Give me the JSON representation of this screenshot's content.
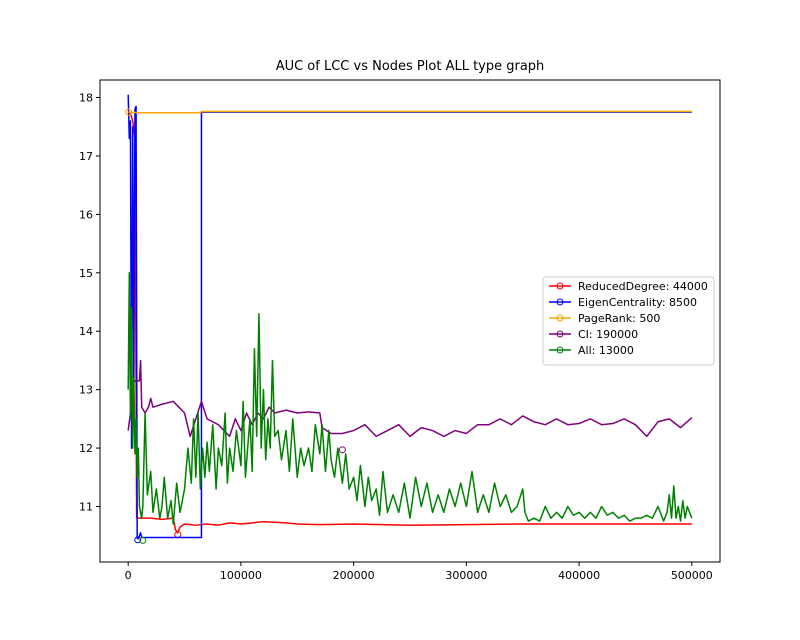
{
  "chart_data": {
    "type": "line",
    "title": "AUC of LCC vs Nodes Plot ALL type graph",
    "xlabel": "",
    "ylabel": "",
    "xlim": [
      -25000,
      525000
    ],
    "ylim": [
      10.05,
      18.3
    ],
    "xticks": [
      0,
      100000,
      200000,
      300000,
      400000,
      500000
    ],
    "xtick_labels": [
      "0",
      "100000",
      "200000",
      "300000",
      "400000",
      "500000"
    ],
    "yticks": [
      11,
      12,
      13,
      14,
      15,
      16,
      17,
      18
    ],
    "ytick_labels": [
      "11",
      "12",
      "13",
      "14",
      "15",
      "16",
      "17",
      "18"
    ],
    "grid": false,
    "legend_position": "center-right",
    "series": [
      {
        "name": "ReducedDegree: 44000",
        "color": "#ff0000",
        "marker": {
          "x": 44000,
          "y": 10.52
        },
        "points": [
          [
            0,
            17.75
          ],
          [
            2500,
            17.7
          ],
          [
            4000,
            17.6
          ],
          [
            6000,
            17.3
          ],
          [
            7500,
            10.8
          ],
          [
            20000,
            10.8
          ],
          [
            30000,
            10.78
          ],
          [
            40000,
            10.8
          ],
          [
            42000,
            10.6
          ],
          [
            44000,
            10.55
          ],
          [
            46000,
            10.65
          ],
          [
            50000,
            10.7
          ],
          [
            60000,
            10.68
          ],
          [
            70000,
            10.7
          ],
          [
            80000,
            10.68
          ],
          [
            90000,
            10.72
          ],
          [
            100000,
            10.7
          ],
          [
            110000,
            10.72
          ],
          [
            120000,
            10.74
          ],
          [
            130000,
            10.73
          ],
          [
            140000,
            10.72
          ],
          [
            150000,
            10.7
          ],
          [
            170000,
            10.69
          ],
          [
            200000,
            10.7
          ],
          [
            250000,
            10.68
          ],
          [
            300000,
            10.69
          ],
          [
            350000,
            10.7
          ],
          [
            400000,
            10.7
          ],
          [
            450000,
            10.7
          ],
          [
            500000,
            10.7
          ]
        ]
      },
      {
        "name": "EigenCentrality: 8500",
        "color": "#0000ff",
        "marker": {
          "x": 8500,
          "y": 10.43
        },
        "points": [
          [
            0,
            18.05
          ],
          [
            1000,
            17.3
          ],
          [
            2000,
            17.6
          ],
          [
            3000,
            12.0
          ],
          [
            4000,
            17.5
          ],
          [
            5000,
            13.0
          ],
          [
            6000,
            17.8
          ],
          [
            7000,
            17.85
          ],
          [
            8000,
            10.45
          ],
          [
            9000,
            10.45
          ],
          [
            11000,
            10.55
          ],
          [
            12000,
            10.47
          ],
          [
            65000,
            10.47
          ],
          [
            65000,
            17.75
          ],
          [
            500000,
            17.75
          ]
        ]
      },
      {
        "name": "PageRank: 500",
        "color": "#ffa500",
        "marker": {
          "x": 500,
          "y": 17.75
        },
        "points": [
          [
            0,
            17.75
          ],
          [
            500,
            17.75
          ],
          [
            10000,
            17.74
          ],
          [
            30000,
            17.74
          ],
          [
            50000,
            17.74
          ],
          [
            64000,
            17.74
          ],
          [
            65000,
            17.76
          ],
          [
            100000,
            17.76
          ],
          [
            200000,
            17.76
          ],
          [
            300000,
            17.76
          ],
          [
            400000,
            17.76
          ],
          [
            500000,
            17.76
          ]
        ]
      },
      {
        "name": "CI: 190000",
        "color": "#800080",
        "marker": {
          "x": 190000,
          "y": 11.97
        },
        "points": [
          [
            0,
            12.3
          ],
          [
            2000,
            12.6
          ],
          [
            4000,
            13.1
          ],
          [
            6000,
            13.15
          ],
          [
            10000,
            13.15
          ],
          [
            11000,
            13.5
          ],
          [
            12000,
            12.7
          ],
          [
            15000,
            12.6
          ],
          [
            18000,
            12.7
          ],
          [
            20000,
            12.85
          ],
          [
            22000,
            12.7
          ],
          [
            30000,
            12.75
          ],
          [
            40000,
            12.8
          ],
          [
            45000,
            12.7
          ],
          [
            50000,
            12.6
          ],
          [
            55000,
            12.2
          ],
          [
            60000,
            12.5
          ],
          [
            65000,
            12.8
          ],
          [
            70000,
            12.5
          ],
          [
            80000,
            12.4
          ],
          [
            90000,
            12.2
          ],
          [
            95000,
            12.5
          ],
          [
            100000,
            12.3
          ],
          [
            105000,
            12.6
          ],
          [
            110000,
            12.4
          ],
          [
            115000,
            12.6
          ],
          [
            120000,
            12.5
          ],
          [
            125000,
            12.7
          ],
          [
            130000,
            12.6
          ],
          [
            140000,
            12.65
          ],
          [
            150000,
            12.6
          ],
          [
            160000,
            12.62
          ],
          [
            170000,
            12.6
          ],
          [
            172000,
            12.35
          ],
          [
            180000,
            12.25
          ],
          [
            190000,
            12.25
          ],
          [
            200000,
            12.3
          ],
          [
            210000,
            12.4
          ],
          [
            220000,
            12.2
          ],
          [
            230000,
            12.3
          ],
          [
            240000,
            12.4
          ],
          [
            250000,
            12.2
          ],
          [
            260000,
            12.35
          ],
          [
            270000,
            12.3
          ],
          [
            280000,
            12.2
          ],
          [
            290000,
            12.3
          ],
          [
            300000,
            12.25
          ],
          [
            310000,
            12.4
          ],
          [
            320000,
            12.4
          ],
          [
            330000,
            12.5
          ],
          [
            340000,
            12.4
          ],
          [
            350000,
            12.55
          ],
          [
            360000,
            12.45
          ],
          [
            370000,
            12.4
          ],
          [
            380000,
            12.5
          ],
          [
            390000,
            12.4
          ],
          [
            400000,
            12.42
          ],
          [
            410000,
            12.5
          ],
          [
            420000,
            12.4
          ],
          [
            430000,
            12.42
          ],
          [
            440000,
            12.5
          ],
          [
            450000,
            12.4
          ],
          [
            460000,
            12.2
          ],
          [
            470000,
            12.45
          ],
          [
            480000,
            12.5
          ],
          [
            490000,
            12.35
          ],
          [
            500000,
            12.52
          ]
        ]
      },
      {
        "name": "All: 13000",
        "color": "#008000",
        "marker": {
          "x": 13000,
          "y": 10.42
        },
        "points": [
          [
            0,
            13.0
          ],
          [
            1000,
            15.0
          ],
          [
            2000,
            12.5
          ],
          [
            3000,
            14.4
          ],
          [
            4000,
            12.0
          ],
          [
            5000,
            13.2
          ],
          [
            6000,
            11.9
          ],
          [
            7000,
            12.5
          ],
          [
            8000,
            11.5
          ],
          [
            9000,
            12.0
          ],
          [
            10000,
            11.0
          ],
          [
            12000,
            10.8
          ],
          [
            13000,
            11.0
          ],
          [
            15000,
            12.6
          ],
          [
            17000,
            11.2
          ],
          [
            20000,
            11.6
          ],
          [
            22000,
            10.9
          ],
          [
            25000,
            11.3
          ],
          [
            28000,
            10.8
          ],
          [
            30000,
            11.0
          ],
          [
            32000,
            11.5
          ],
          [
            35000,
            10.8
          ],
          [
            38000,
            11.1
          ],
          [
            40000,
            10.7
          ],
          [
            43000,
            11.4
          ],
          [
            46000,
            10.9
          ],
          [
            50000,
            11.3
          ],
          [
            53000,
            12.0
          ],
          [
            56000,
            11.4
          ],
          [
            58000,
            12.5
          ],
          [
            60000,
            11.5
          ],
          [
            62000,
            12.6
          ],
          [
            64000,
            11.3
          ],
          [
            66000,
            12.0
          ],
          [
            68000,
            11.5
          ],
          [
            70000,
            12.1
          ],
          [
            72000,
            11.6
          ],
          [
            75000,
            12.4
          ],
          [
            78000,
            11.3
          ],
          [
            80000,
            12.0
          ],
          [
            83000,
            11.7
          ],
          [
            86000,
            12.6
          ],
          [
            88000,
            11.4
          ],
          [
            90000,
            12.0
          ],
          [
            93000,
            11.6
          ],
          [
            96000,
            12.3
          ],
          [
            100000,
            11.7
          ],
          [
            102000,
            12.8
          ],
          [
            104000,
            11.5
          ],
          [
            106000,
            12.0
          ],
          [
            108000,
            12.5
          ],
          [
            110000,
            11.6
          ],
          [
            112000,
            13.7
          ],
          [
            114000,
            12.2
          ],
          [
            116000,
            14.3
          ],
          [
            118000,
            12.0
          ],
          [
            120000,
            13.0
          ],
          [
            122000,
            11.8
          ],
          [
            124000,
            12.5
          ],
          [
            126000,
            12.0
          ],
          [
            128000,
            13.5
          ],
          [
            130000,
            12.2
          ],
          [
            133000,
            12.3
          ],
          [
            136000,
            11.8
          ],
          [
            140000,
            12.3
          ],
          [
            143000,
            11.6
          ],
          [
            146000,
            12.5
          ],
          [
            150000,
            11.5
          ],
          [
            153000,
            12.0
          ],
          [
            156000,
            11.7
          ],
          [
            160000,
            12.0
          ],
          [
            163000,
            11.6
          ],
          [
            166000,
            12.4
          ],
          [
            170000,
            11.9
          ],
          [
            172000,
            12.4
          ],
          [
            175000,
            11.6
          ],
          [
            178000,
            12.3
          ],
          [
            180000,
            11.8
          ],
          [
            183000,
            11.5
          ],
          [
            186000,
            12.0
          ],
          [
            190000,
            11.4
          ],
          [
            193000,
            11.9
          ],
          [
            196000,
            11.3
          ],
          [
            200000,
            11.5
          ],
          [
            203000,
            11.1
          ],
          [
            206000,
            11.7
          ],
          [
            210000,
            11.0
          ],
          [
            213000,
            11.5
          ],
          [
            216000,
            11.1
          ],
          [
            220000,
            11.3
          ],
          [
            223000,
            10.85
          ],
          [
            226000,
            11.6
          ],
          [
            230000,
            10.9
          ],
          [
            235000,
            11.2
          ],
          [
            240000,
            10.9
          ],
          [
            245000,
            11.4
          ],
          [
            250000,
            10.8
          ],
          [
            255000,
            11.5
          ],
          [
            260000,
            11.0
          ],
          [
            265000,
            11.4
          ],
          [
            270000,
            10.9
          ],
          [
            275000,
            11.2
          ],
          [
            280000,
            10.9
          ],
          [
            285000,
            11.3
          ],
          [
            290000,
            11.0
          ],
          [
            295000,
            11.4
          ],
          [
            300000,
            11.0
          ],
          [
            305000,
            11.6
          ],
          [
            310000,
            10.9
          ],
          [
            315000,
            11.2
          ],
          [
            320000,
            10.9
          ],
          [
            325000,
            11.4
          ],
          [
            330000,
            11.0
          ],
          [
            335000,
            11.2
          ],
          [
            340000,
            10.9
          ],
          [
            345000,
            11.0
          ],
          [
            350000,
            11.3
          ],
          [
            352000,
            10.9
          ],
          [
            355000,
            10.75
          ],
          [
            360000,
            10.8
          ],
          [
            365000,
            10.75
          ],
          [
            370000,
            11.0
          ],
          [
            375000,
            10.8
          ],
          [
            380000,
            10.9
          ],
          [
            385000,
            10.8
          ],
          [
            390000,
            11.0
          ],
          [
            395000,
            10.85
          ],
          [
            400000,
            10.9
          ],
          [
            405000,
            10.8
          ],
          [
            410000,
            10.9
          ],
          [
            415000,
            10.8
          ],
          [
            420000,
            11.0
          ],
          [
            425000,
            10.85
          ],
          [
            430000,
            10.9
          ],
          [
            435000,
            10.8
          ],
          [
            440000,
            10.85
          ],
          [
            445000,
            10.75
          ],
          [
            450000,
            10.8
          ],
          [
            455000,
            10.8
          ],
          [
            460000,
            10.85
          ],
          [
            465000,
            10.8
          ],
          [
            470000,
            11.0
          ],
          [
            475000,
            10.75
          ],
          [
            478000,
            10.9
          ],
          [
            480000,
            11.2
          ],
          [
            482000,
            10.8
          ],
          [
            484000,
            11.35
          ],
          [
            486000,
            10.8
          ],
          [
            488000,
            11.0
          ],
          [
            490000,
            10.75
          ],
          [
            492000,
            11.1
          ],
          [
            494000,
            10.8
          ],
          [
            496000,
            11.0
          ],
          [
            500000,
            10.8
          ]
        ]
      }
    ]
  }
}
